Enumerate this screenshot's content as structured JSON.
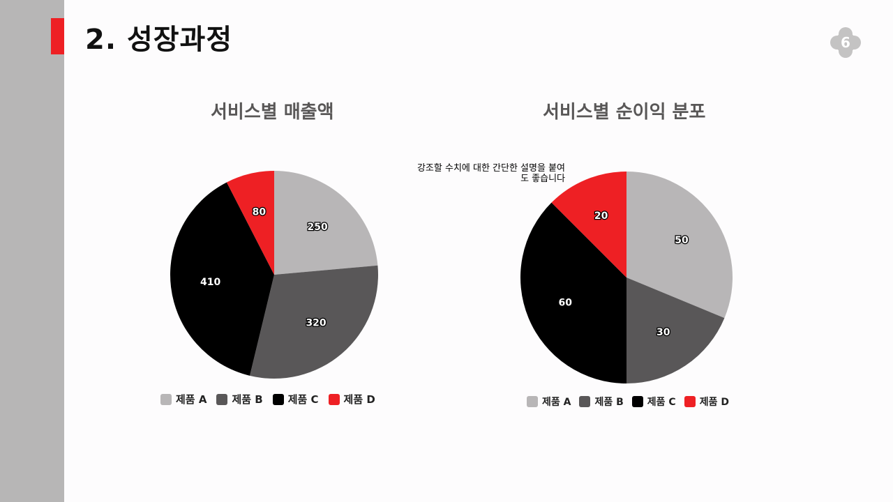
{
  "slide": {
    "title": "2.  성장과정",
    "page_number": "6"
  },
  "colors": {
    "accent": "#ee2024",
    "sidebar": "#b7b6b6",
    "series": [
      "#b8b6b7",
      "#595758",
      "#000000",
      "#ee2024"
    ]
  },
  "callout": {
    "line1": "강조할 수치에 대한 간단한 설명을 붙여",
    "line2": "도 좋습니다"
  },
  "chart_data": [
    {
      "type": "pie",
      "title": "서비스별 매출액",
      "categories": [
        "제품 A",
        "제품 B",
        "제품 C",
        "제품 D"
      ],
      "values": [
        250,
        320,
        410,
        80
      ],
      "legend": "bottom"
    },
    {
      "type": "pie",
      "title": "서비스별 순이익 분포",
      "categories": [
        "제품 A",
        "제품 B",
        "제품 C",
        "제품 D"
      ],
      "values": [
        50,
        30,
        60,
        20
      ],
      "legend": "bottom"
    }
  ]
}
